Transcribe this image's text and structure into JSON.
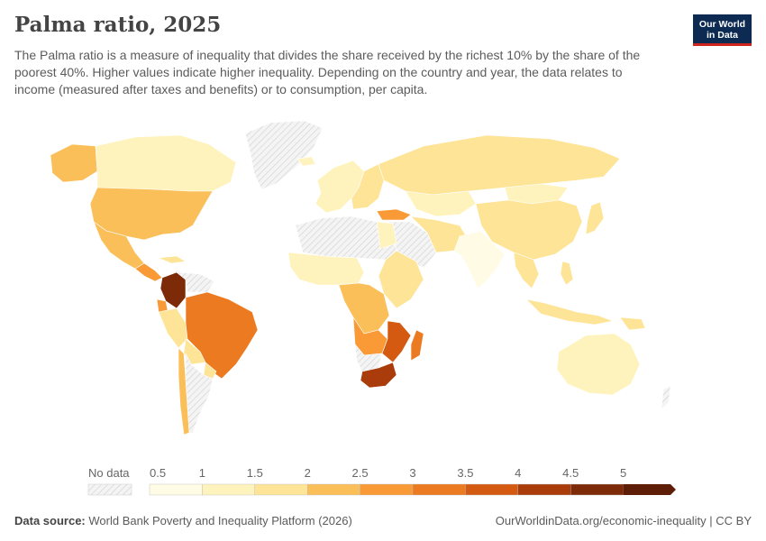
{
  "header": {
    "title": "Palma ratio, 2025",
    "subtitle": "The Palma ratio is a measure of inequality that divides the share received by the richest 10% by the share of the poorest 40%. Higher values indicate higher inequality. Depending on the country and year, the data relates to income (measured after taxes and benefits) or to consumption, per capita.",
    "logo_line1": "Our World",
    "logo_line2": "in Data"
  },
  "legend": {
    "no_data_label": "No data",
    "ticks": [
      "0.5",
      "1",
      "1.5",
      "2",
      "2.5",
      "3",
      "3.5",
      "4",
      "4.5",
      "5"
    ],
    "colors": [
      "#fffbe5",
      "#fff3bd",
      "#fde497",
      "#fbbf5a",
      "#f99a37",
      "#ec7a20",
      "#d35a10",
      "#a93c0a",
      "#7d2a08",
      "#5e1d07"
    ]
  },
  "footer": {
    "source_label": "Data source:",
    "source_text": "World Bank Poverty and Inequality Platform (2026)",
    "right_text": "OurWorldinData.org/economic-inequality | CC BY"
  }
}
